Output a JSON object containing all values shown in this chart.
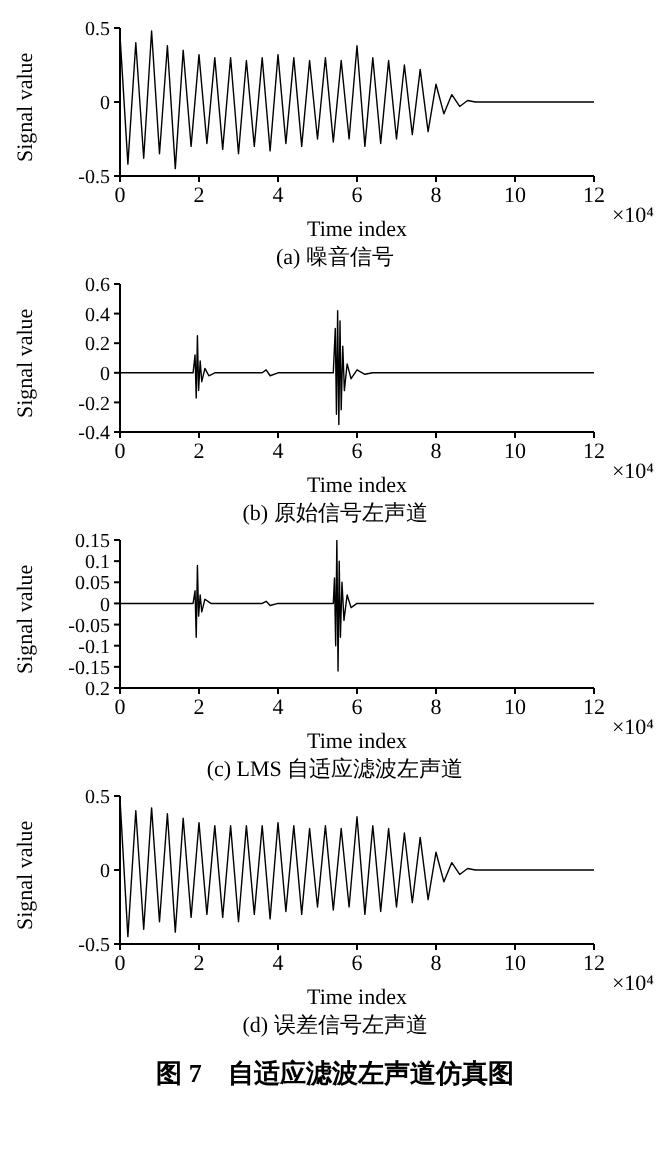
{
  "chart_data": [
    {
      "type": "line",
      "title": "(a) 噪音信号",
      "xlabel": "Time index",
      "ylabel": "Signal value",
      "annotations": [
        "×10⁴"
      ],
      "xlim": [
        0,
        12
      ],
      "xticks": [
        0,
        2,
        4,
        6,
        8,
        10,
        12
      ],
      "ylim": [
        -0.5,
        0.5
      ],
      "yticks": [
        -0.5,
        0,
        0.5
      ],
      "series": [
        {
          "color": "#000000",
          "x": [
            0,
            0.2,
            0.4,
            0.6,
            0.8,
            1,
            1.2,
            1.4,
            1.6,
            1.8,
            2,
            2.2,
            2.4,
            2.6,
            2.8,
            3,
            3.2,
            3.4,
            3.6,
            3.8,
            4,
            4.2,
            4.4,
            4.6,
            4.8,
            5,
            5.2,
            5.4,
            5.6,
            5.8,
            6,
            6.2,
            6.4,
            6.6,
            6.8,
            7,
            7.2,
            7.4,
            7.6,
            7.8,
            8,
            8.2,
            8.4,
            8.6,
            8.8,
            9,
            12
          ],
          "values": [
            0.45,
            -0.42,
            0.4,
            -0.38,
            0.48,
            -0.35,
            0.38,
            -0.45,
            0.35,
            -0.3,
            0.32,
            -0.28,
            0.3,
            -0.32,
            0.3,
            -0.35,
            0.28,
            -0.3,
            0.3,
            -0.33,
            0.32,
            -0.28,
            0.3,
            -0.3,
            0.28,
            -0.25,
            0.3,
            -0.27,
            0.28,
            -0.25,
            0.38,
            -0.3,
            0.3,
            -0.28,
            0.28,
            -0.25,
            0.25,
            -0.22,
            0.22,
            -0.2,
            0.12,
            -0.08,
            0.05,
            -0.03,
            0.01,
            0,
            0
          ]
        }
      ]
    },
    {
      "type": "line",
      "title": "(b) 原始信号左声道",
      "xlabel": "Time index",
      "ylabel": "Signal value",
      "annotations": [
        "×10⁴"
      ],
      "xlim": [
        0,
        12
      ],
      "xticks": [
        0,
        2,
        4,
        6,
        8,
        10,
        12
      ],
      "ylim": [
        -0.4,
        0.6
      ],
      "yticks": [
        -0.4,
        -0.2,
        0,
        0.2,
        0.4,
        0.6
      ],
      "series": [
        {
          "color": "#000000",
          "x": [
            0,
            1.85,
            1.9,
            1.93,
            1.96,
            1.99,
            2.03,
            2.07,
            2.15,
            2.25,
            2.4,
            3.6,
            3.7,
            3.8,
            4,
            5.4,
            5.45,
            5.48,
            5.51,
            5.54,
            5.57,
            5.6,
            5.64,
            5.68,
            5.75,
            5.85,
            6,
            6.2,
            6.4,
            12
          ],
          "values": [
            0,
            0,
            0.12,
            -0.17,
            0.25,
            -0.12,
            0.08,
            -0.06,
            0.03,
            -0.02,
            0,
            0,
            0.02,
            -0.02,
            0,
            0,
            0.3,
            -0.28,
            0.42,
            -0.35,
            0.35,
            -0.25,
            0.18,
            -0.12,
            0.06,
            -0.04,
            0.02,
            -0.01,
            0,
            0
          ]
        }
      ]
    },
    {
      "type": "line",
      "title": "(c) LMS 自适应滤波左声道",
      "xlabel": "Time index",
      "ylabel": "Signal value",
      "annotations": [
        "×10⁴"
      ],
      "xlim": [
        0,
        12
      ],
      "xticks": [
        0,
        2,
        4,
        6,
        8,
        10,
        12
      ],
      "ylim": [
        -0.2,
        0.15
      ],
      "yticks": [
        {
          "value": -0.2,
          "label": "0.2"
        },
        -0.15,
        -0.1,
        -0.05,
        0,
        0.05,
        0.1,
        0.15
      ],
      "series": [
        {
          "color": "#000000",
          "x": [
            0,
            1.85,
            1.9,
            1.93,
            1.96,
            1.99,
            2.03,
            2.07,
            2.15,
            2.3,
            3.6,
            3.7,
            3.8,
            4,
            5.4,
            5.43,
            5.46,
            5.49,
            5.52,
            5.55,
            5.58,
            5.62,
            5.67,
            5.75,
            5.85,
            6,
            12
          ],
          "values": [
            0,
            0,
            0.03,
            -0.08,
            0.09,
            -0.03,
            0.02,
            -0.02,
            0.01,
            0,
            0,
            0.005,
            -0.005,
            0,
            0,
            0.06,
            -0.1,
            0.15,
            -0.16,
            0.1,
            -0.08,
            0.05,
            -0.04,
            0.02,
            -0.01,
            0,
            0
          ]
        }
      ]
    },
    {
      "type": "line",
      "title": "(d) 误差信号左声道",
      "xlabel": "Time index",
      "ylabel": "Signal value",
      "annotations": [
        "×10⁴",
        "图 7　自适应滤波左声道仿真图"
      ],
      "xlim": [
        0,
        12
      ],
      "xticks": [
        0,
        2,
        4,
        6,
        8,
        10,
        12
      ],
      "ylim": [
        -0.5,
        0.5
      ],
      "yticks": [
        -0.5,
        0,
        0.5
      ],
      "series": [
        {
          "color": "#000000",
          "x": [
            0,
            0.2,
            0.4,
            0.6,
            0.8,
            1,
            1.2,
            1.4,
            1.6,
            1.8,
            2,
            2.2,
            2.4,
            2.6,
            2.8,
            3,
            3.2,
            3.4,
            3.6,
            3.8,
            4,
            4.2,
            4.4,
            4.6,
            4.8,
            5,
            5.2,
            5.4,
            5.6,
            5.8,
            6,
            6.2,
            6.4,
            6.6,
            6.8,
            7,
            7.2,
            7.4,
            7.6,
            7.8,
            8,
            8.2,
            8.4,
            8.6,
            8.8,
            9,
            12
          ],
          "values": [
            0.48,
            -0.45,
            0.4,
            -0.4,
            0.42,
            -0.35,
            0.38,
            -0.42,
            0.35,
            -0.32,
            0.32,
            -0.3,
            0.3,
            -0.32,
            0.3,
            -0.35,
            0.3,
            -0.3,
            0.3,
            -0.33,
            0.32,
            -0.28,
            0.3,
            -0.3,
            0.28,
            -0.25,
            0.3,
            -0.27,
            0.28,
            -0.25,
            0.36,
            -0.3,
            0.3,
            -0.28,
            0.28,
            -0.25,
            0.25,
            -0.22,
            0.22,
            -0.2,
            0.12,
            -0.08,
            0.05,
            -0.03,
            0.01,
            0,
            0
          ]
        }
      ]
    }
  ]
}
